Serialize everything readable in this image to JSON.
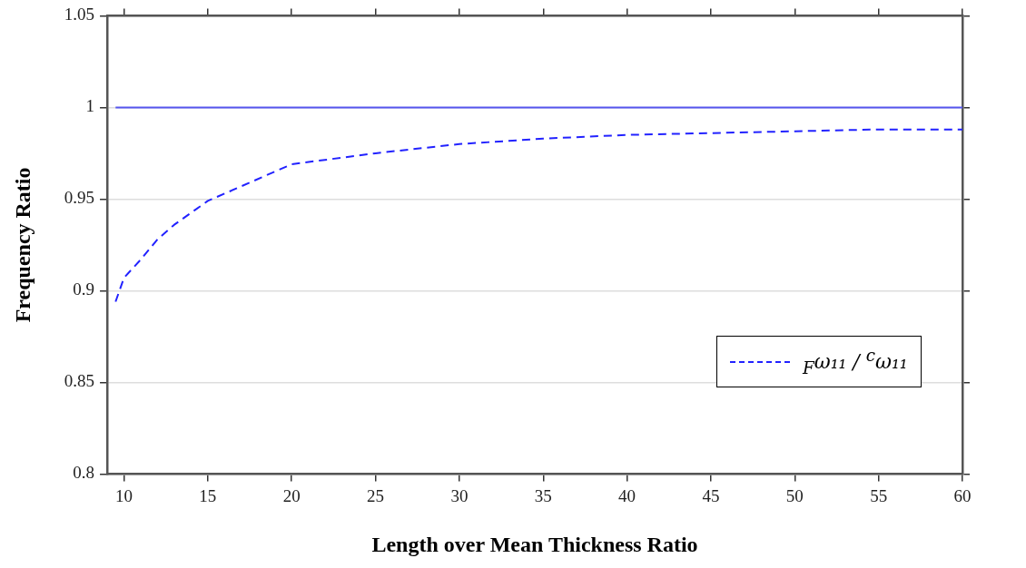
{
  "chart_data": {
    "type": "line",
    "xlabel": "Length over Mean Thickness Ratio",
    "ylabel": "Frequency Ratio",
    "xlim": [
      9,
      60
    ],
    "ylim": [
      0.8,
      1.05
    ],
    "xticks": [
      10,
      15,
      20,
      25,
      30,
      35,
      40,
      45,
      50,
      55,
      60
    ],
    "yticks": [
      0.8,
      0.85,
      0.9,
      0.95,
      1,
      1.05
    ],
    "grid": "y",
    "legend": "bottom right",
    "marker": "none",
    "series": [
      {
        "color": "#5555ee",
        "line_style": "solid",
        "x": [
          9.5,
          60
        ],
        "values": [
          1,
          1
        ]
      },
      {
        "name": "$_{F}$ω₁₁ / $^{c}$ω₁₁",
        "color": "#2222ff",
        "line_style": "dashed",
        "x": [
          9.5,
          10,
          11,
          12,
          13,
          15,
          17.5,
          20,
          25,
          30,
          35,
          40,
          45,
          50,
          55,
          60
        ],
        "values": [
          0.894,
          0.907,
          0.917,
          0.928,
          0.936,
          0.949,
          0.959,
          0.969,
          0.975,
          0.98,
          0.983,
          0.985,
          0.986,
          0.987,
          0.988,
          0.988
        ]
      }
    ]
  }
}
